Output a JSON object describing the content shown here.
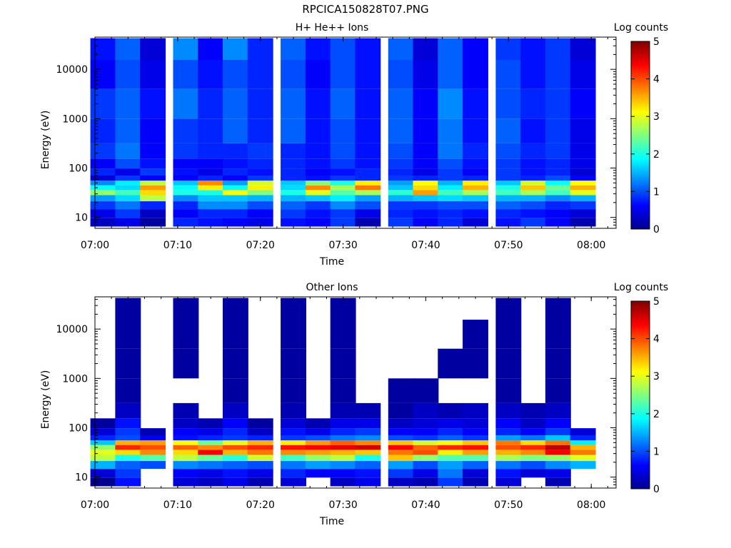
{
  "page": {
    "file_title": "RPCICA150828T07.PNG"
  },
  "colorscale": {
    "name": "jet",
    "stops": [
      "#00008f",
      "#0000ff",
      "#0080ff",
      "#00ffff",
      "#80ff80",
      "#ffff00",
      "#ff8000",
      "#ff0000",
      "#800000"
    ]
  },
  "chart_data": [
    {
      "type": "heatmap",
      "title": "H+ He++ Ions",
      "xlabel": "Time",
      "ylabel": "Energy (eV)",
      "colorbar_label": "Log counts",
      "y_scale": "log",
      "ylim": [
        6,
        45000
      ],
      "x_ticks": [
        "07:00",
        "07:10",
        "07:20",
        "07:30",
        "07:40",
        "07:50",
        "08:00"
      ],
      "y_ticks": [
        "10",
        "100",
        "1000",
        "10000"
      ],
      "colorbar_ticks": [
        "0",
        "1",
        "2",
        "3",
        "4",
        "5"
      ],
      "clim": [
        0,
        5
      ],
      "time_bins": [
        "07:01",
        "07:04",
        "07:07",
        "07:11",
        "07:14",
        "07:17",
        "07:20",
        "07:24",
        "07:27",
        "07:30",
        "07:33",
        "07:37",
        "07:40",
        "07:43",
        "07:46",
        "07:50",
        "07:53",
        "07:56",
        "07:59"
      ],
      "energy_bands_eV": [
        8,
        12,
        18,
        25,
        32,
        40,
        50,
        62,
        80,
        120,
        200,
        500,
        2000,
        8000,
        30000
      ],
      "log_counts": [
        [
          0.3,
          0.5,
          0.9,
          1.4,
          2.6,
          1.9,
          1.3,
          0.4,
          0.8,
          0.6,
          0.9,
          0.8,
          0.9,
          0.6,
          0.7
        ],
        [
          0.5,
          0.9,
          1.2,
          1.7,
          2.2,
          1.7,
          1.8,
          0.9,
          0.5,
          1.0,
          1.2,
          1.1,
          1.1,
          1.0,
          1.1
        ],
        [
          0.1,
          0.3,
          0.8,
          2.8,
          3.3,
          3.6,
          2.8,
          0.6,
          0.9,
          0.7,
          0.6,
          0.6,
          0.7,
          0.5,
          0.4
        ],
        [
          0.8,
          0.6,
          0.8,
          1.3,
          2.0,
          1.9,
          1.6,
          0.6,
          0.7,
          0.6,
          0.9,
          0.9,
          1.2,
          1.0,
          1.3
        ],
        [
          0.7,
          0.8,
          1.3,
          1.6,
          2.0,
          3.2,
          3.7,
          0.8,
          0.5,
          0.6,
          0.8,
          0.8,
          0.8,
          0.7,
          0.6
        ],
        [
          0.6,
          0.8,
          1.3,
          1.6,
          3.1,
          1.9,
          1.4,
          0.6,
          0.8,
          0.7,
          0.8,
          1.1,
          1.1,
          1.0,
          1.3
        ],
        [
          0.5,
          0.6,
          1.0,
          1.5,
          2.5,
          3.2,
          2.9,
          0.9,
          0.7,
          0.8,
          0.9,
          0.8,
          0.8,
          0.8,
          0.8
        ],
        [
          0.7,
          0.9,
          1.1,
          1.5,
          2.0,
          1.7,
          1.6,
          0.8,
          0.8,
          0.8,
          0.8,
          1.1,
          1.1,
          1.0,
          1.1
        ],
        [
          0.6,
          0.7,
          0.9,
          1.6,
          3.0,
          3.7,
          2.5,
          0.7,
          0.6,
          0.7,
          0.7,
          0.7,
          0.7,
          0.6,
          0.7
        ],
        [
          0.9,
          0.9,
          1.3,
          1.8,
          2.3,
          2.7,
          2.0,
          0.9,
          0.7,
          0.9,
          1.0,
          1.0,
          1.1,
          1.0,
          1.0
        ],
        [
          0.2,
          0.5,
          1.0,
          1.4,
          2.7,
          3.8,
          3.2,
          0.8,
          0.8,
          0.7,
          0.7,
          0.7,
          0.7,
          0.7,
          0.7
        ],
        [
          0.9,
          0.8,
          0.9,
          1.5,
          2.1,
          1.6,
          1.4,
          0.9,
          0.8,
          0.9,
          1.0,
          1.1,
          1.1,
          1.0,
          1.1
        ],
        [
          0.6,
          0.7,
          0.9,
          1.6,
          3.6,
          3.3,
          3.1,
          0.8,
          0.5,
          0.6,
          0.6,
          0.6,
          0.6,
          0.5,
          0.4
        ],
        [
          0.8,
          0.8,
          1.0,
          1.7,
          2.2,
          1.8,
          1.5,
          0.9,
          0.9,
          1.0,
          1.2,
          1.2,
          1.3,
          1.1,
          1.1
        ],
        [
          0.4,
          0.7,
          1.0,
          1.6,
          2.7,
          3.5,
          3.2,
          0.8,
          0.6,
          0.7,
          0.8,
          0.7,
          0.7,
          0.6,
          0.6
        ],
        [
          0.7,
          0.8,
          1.1,
          1.5,
          2.2,
          2.0,
          1.6,
          0.9,
          0.9,
          0.9,
          1.0,
          1.1,
          1.0,
          1.0,
          0.9
        ],
        [
          0.9,
          0.7,
          1.0,
          1.5,
          2.7,
          3.4,
          2.9,
          0.8,
          0.7,
          0.7,
          0.8,
          0.7,
          0.8,
          0.7,
          0.7
        ],
        [
          0.6,
          0.6,
          0.8,
          1.3,
          2.2,
          2.4,
          1.9,
          1.0,
          0.8,
          0.8,
          0.9,
          0.9,
          0.9,
          0.9,
          0.9
        ],
        [
          0.2,
          0.4,
          0.9,
          1.5,
          3.0,
          3.5,
          3.1,
          0.6,
          0.4,
          0.5,
          0.5,
          0.5,
          0.6,
          0.5,
          0.4
        ]
      ]
    },
    {
      "type": "heatmap",
      "title": "Other Ions",
      "xlabel": "Time",
      "ylabel": "Energy (eV)",
      "colorbar_label": "Log counts",
      "y_scale": "log",
      "ylim": [
        6,
        45000
      ],
      "x_ticks": [
        "07:00",
        "07:10",
        "07:20",
        "07:30",
        "07:40",
        "07:50",
        "08:00"
      ],
      "y_ticks": [
        "10",
        "100",
        "1000",
        "10000"
      ],
      "colorbar_ticks": [
        "0",
        "1",
        "2",
        "3",
        "4",
        "5"
      ],
      "clim": [
        0,
        5
      ],
      "time_bins": [
        "07:01",
        "07:04",
        "07:07",
        "07:11",
        "07:14",
        "07:17",
        "07:20",
        "07:24",
        "07:27",
        "07:30",
        "07:33",
        "07:37",
        "07:40",
        "07:43",
        "07:46",
        "07:50",
        "07:53",
        "07:56",
        "07:59"
      ],
      "energy_bands_eV": [
        8,
        12,
        18,
        25,
        32,
        40,
        50,
        62,
        80,
        120,
        200,
        500,
        2000,
        8000,
        30000
      ],
      "log_counts": [
        [
          0.0,
          0.4,
          1.5,
          2.8,
          3.0,
          2.6,
          1.6,
          0.8,
          0.4,
          0.1,
          null,
          null,
          null,
          null,
          null
        ],
        [
          0.7,
          0.9,
          1.1,
          2.0,
          3.3,
          4.2,
          3.5,
          1.0,
          0.9,
          0.7,
          0.3,
          0.1,
          0.1,
          0.1,
          0.1
        ],
        [
          null,
          null,
          1.0,
          2.3,
          3.7,
          4.0,
          3.6,
          0.5,
          0.2,
          null,
          null,
          null,
          null,
          null,
          null
        ],
        [
          0.4,
          0.6,
          1.3,
          2.8,
          3.3,
          3.9,
          3.1,
          0.7,
          0.6,
          0.3,
          0.2,
          null,
          0.1,
          0.1,
          0.1
        ],
        [
          0.3,
          0.5,
          1.2,
          2.4,
          4.4,
          3.7,
          2.4,
          0.8,
          0.5,
          0.2,
          null,
          null,
          null,
          null,
          null
        ],
        [
          0.5,
          0.7,
          1.1,
          2.1,
          3.5,
          4.0,
          3.0,
          0.9,
          0.8,
          0.6,
          0.3,
          0.1,
          0.1,
          0.1,
          0.1
        ],
        [
          0.2,
          0.5,
          1.0,
          2.9,
          3.8,
          4.2,
          3.5,
          0.8,
          0.3,
          0.1,
          null,
          null,
          null,
          null,
          null
        ],
        [
          0.4,
          0.8,
          1.2,
          2.2,
          3.7,
          4.3,
          3.2,
          0.9,
          0.7,
          0.4,
          0.2,
          0.1,
          0.1,
          0.1,
          0.1
        ],
        [
          null,
          0.6,
          1.4,
          2.6,
          3.6,
          4.4,
          3.6,
          1.0,
          0.5,
          0.2,
          null,
          null,
          null,
          null,
          null
        ],
        [
          0.3,
          0.6,
          1.3,
          2.8,
          3.5,
          4.5,
          3.9,
          1.2,
          0.8,
          0.5,
          0.2,
          0.1,
          0.1,
          0.1,
          0.1
        ],
        [
          0.5,
          0.7,
          1.1,
          2.0,
          3.4,
          4.6,
          3.7,
          1.3,
          0.9,
          0.5,
          0.2,
          null,
          null,
          null,
          null
        ],
        [
          0.3,
          0.9,
          1.4,
          3.4,
          3.8,
          4.4,
          3.4,
          1.0,
          0.6,
          0.3,
          0.1,
          0.1,
          null,
          null,
          null
        ],
        [
          0.2,
          0.5,
          1.0,
          2.6,
          4.0,
          3.9,
          2.9,
          0.9,
          0.6,
          0.4,
          0.3,
          0.1,
          null,
          null,
          null
        ],
        [
          0.9,
          1.2,
          1.4,
          2.3,
          3.2,
          4.2,
          3.1,
          1.1,
          0.8,
          0.5,
          0.2,
          null,
          0.1,
          null,
          null
        ],
        [
          0.2,
          0.4,
          1.1,
          2.3,
          3.6,
          4.3,
          3.4,
          0.9,
          0.6,
          0.4,
          0.3,
          null,
          0.1,
          0.1,
          null
        ],
        [
          0.4,
          0.7,
          1.2,
          2.7,
          3.5,
          4.0,
          3.8,
          1.4,
          0.8,
          0.6,
          0.3,
          0.1,
          0.1,
          0.1,
          0.1
        ],
        [
          null,
          0.4,
          1.0,
          2.5,
          3.7,
          4.2,
          3.3,
          1.2,
          0.6,
          0.3,
          0.2,
          null,
          null,
          null,
          null
        ],
        [
          0.2,
          0.5,
          1.3,
          2.6,
          4.4,
          4.7,
          3.8,
          1.6,
          0.9,
          0.6,
          0.3,
          0.1,
          0.1,
          0.1,
          0.1
        ],
        [
          null,
          null,
          1.5,
          3.0,
          3.8,
          3.5,
          1.8,
          0.8,
          0.4,
          null,
          null,
          null,
          null,
          null,
          null
        ]
      ]
    }
  ]
}
